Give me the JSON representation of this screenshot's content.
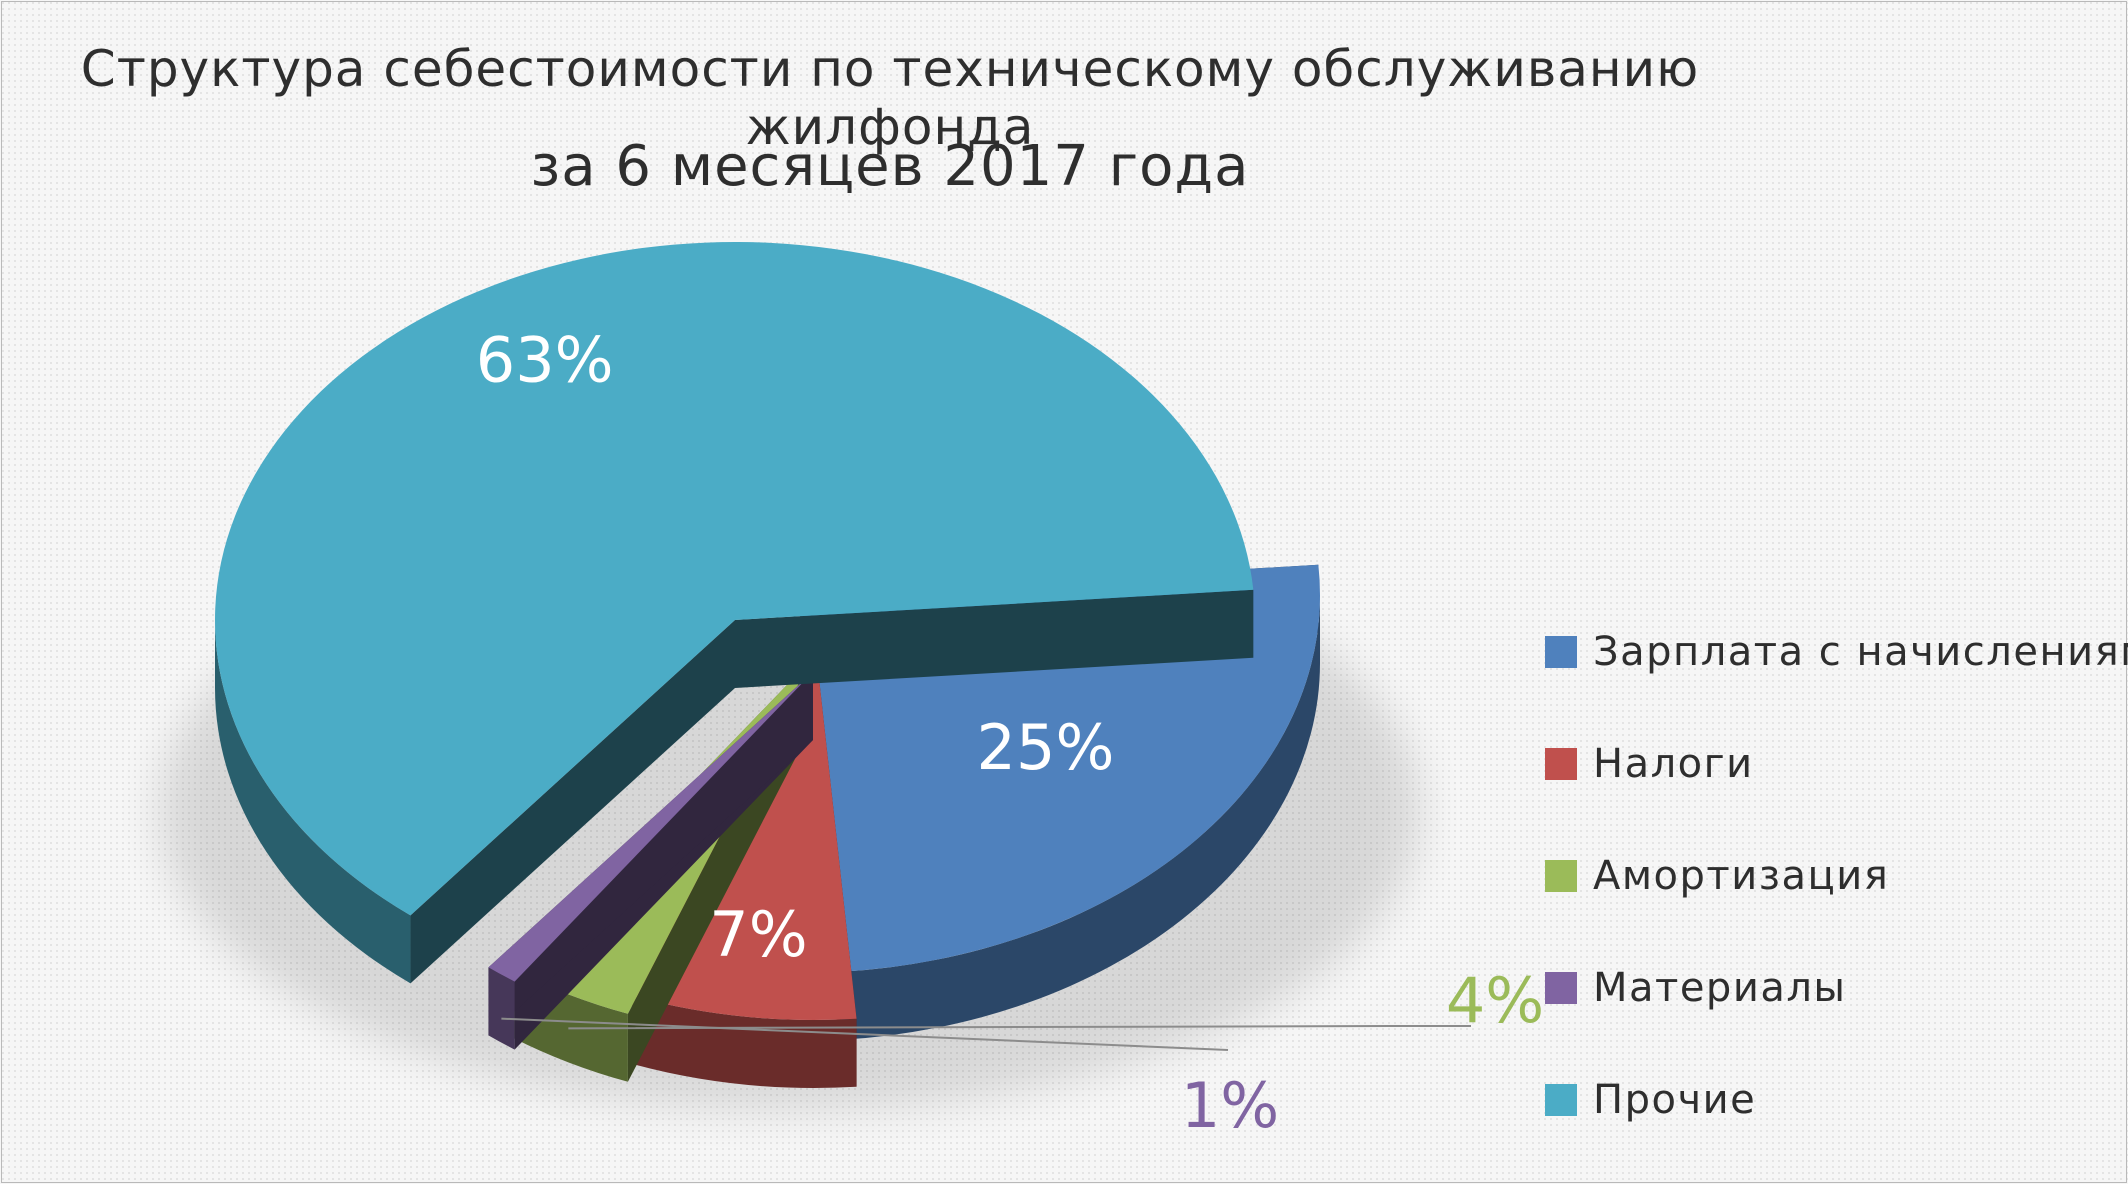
{
  "chart_data": {
    "type": "pie",
    "title": "Структура себестоимости по техническому обслуживанию жилфонда",
    "subtitle": "за 6 месяцев 2017 года",
    "legend_position": "right",
    "categories": [
      "Зарплата с начислениями",
      "Налоги",
      "Амортизация",
      "Материалы",
      "Прочие"
    ],
    "values": [
      25,
      7,
      4,
      1,
      63
    ],
    "data_labels": [
      "25%",
      "7%",
      "4%",
      "1%",
      "63%"
    ],
    "colors": [
      "#4f81bd",
      "#c0504d",
      "#9bbb59",
      "#8064a2",
      "#4bacc6"
    ],
    "label_colors": [
      "#ffffff",
      "#ffffff",
      "#9bbb59",
      "#8064a2",
      "#ffffff"
    ]
  }
}
